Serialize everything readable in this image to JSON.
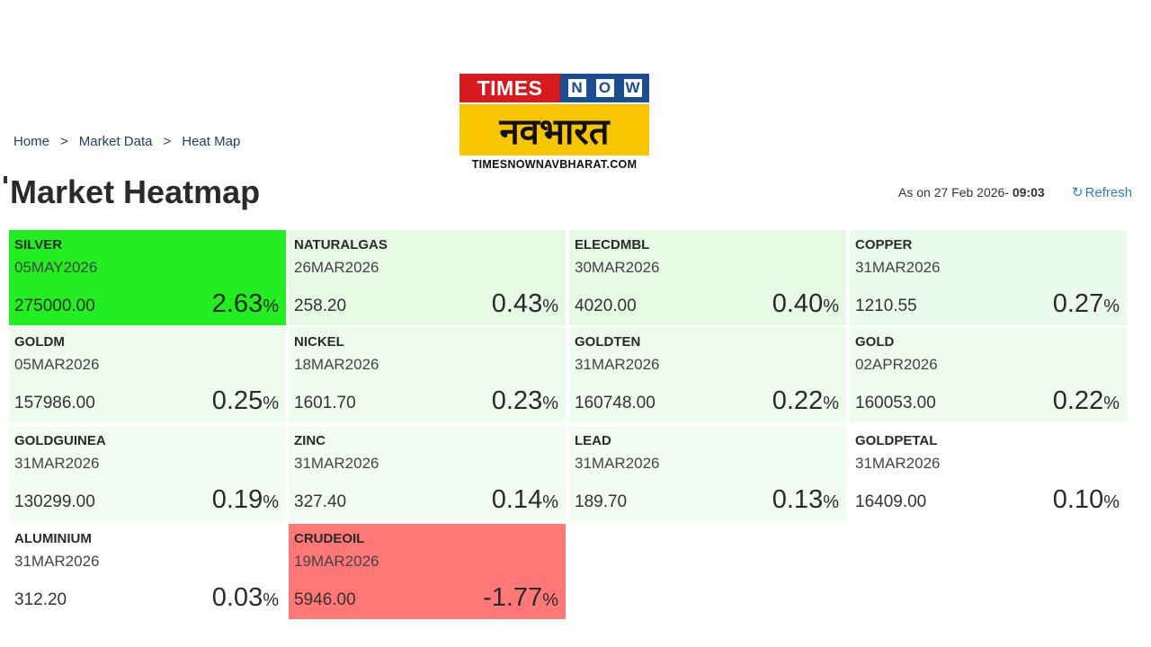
{
  "logo": {
    "times": "TIMES",
    "now": [
      "N",
      "O",
      "W"
    ],
    "hindi": "नवभारत",
    "url": "TIMESNOWNAVBHARAT.COM"
  },
  "breadcrumb": [
    "Home",
    "Market Data",
    "Heat Map"
  ],
  "breadcrumb_sep": ">",
  "title": "Market Heatmap",
  "status": {
    "prefix": "As on 27 Feb 2026- ",
    "time": "09:03"
  },
  "refresh": {
    "icon": "↻",
    "label": "Refresh"
  },
  "colors": {
    "strong_green": "#22ee22",
    "light_green": "#eafbea",
    "red": "#ff7777",
    "white": "#ffffff"
  },
  "tiles": [
    {
      "name": "SILVER",
      "expiry": "05MAY2026",
      "price": "275000.00",
      "change": "2.63",
      "color": "#22ee22"
    },
    {
      "name": "NATURALGAS",
      "expiry": "26MAR2026",
      "price": "258.20",
      "change": "0.43",
      "color": "#e6fae6"
    },
    {
      "name": "ELECDMBL",
      "expiry": "30MAR2026",
      "price": "4020.00",
      "change": "0.40",
      "color": "#e6fae6"
    },
    {
      "name": "COPPER",
      "expiry": "31MAR2026",
      "price": "1210.55",
      "change": "0.27",
      "color": "#ebfbeb"
    },
    {
      "name": "GOLDM",
      "expiry": "05MAR2026",
      "price": "157986.00",
      "change": "0.25",
      "color": "#eefcee"
    },
    {
      "name": "NICKEL",
      "expiry": "18MAR2026",
      "price": "1601.70",
      "change": "0.23",
      "color": "#eefcee"
    },
    {
      "name": "GOLDTEN",
      "expiry": "31MAR2026",
      "price": "160748.00",
      "change": "0.22",
      "color": "#eefcee"
    },
    {
      "name": "GOLD",
      "expiry": "02APR2026",
      "price": "160053.00",
      "change": "0.22",
      "color": "#eefcee"
    },
    {
      "name": "GOLDGUINEA",
      "expiry": "31MAR2026",
      "price": "130299.00",
      "change": "0.19",
      "color": "#f2fcf2"
    },
    {
      "name": "ZINC",
      "expiry": "31MAR2026",
      "price": "327.40",
      "change": "0.14",
      "color": "#f2fcf2"
    },
    {
      "name": "LEAD",
      "expiry": "31MAR2026",
      "price": "189.70",
      "change": "0.13",
      "color": "#f2fcf2"
    },
    {
      "name": "GOLDPETAL",
      "expiry": "31MAR2026",
      "price": "16409.00",
      "change": "0.10",
      "color": "#ffffff"
    },
    {
      "name": "ALUMINIUM",
      "expiry": "31MAR2026",
      "price": "312.20",
      "change": "0.03",
      "color": "#ffffff"
    },
    {
      "name": "CRUDEOIL",
      "expiry": "19MAR2026",
      "price": "5946.00",
      "change": "-1.77",
      "color": "#ff7777"
    }
  ],
  "pct_symbol": "%"
}
